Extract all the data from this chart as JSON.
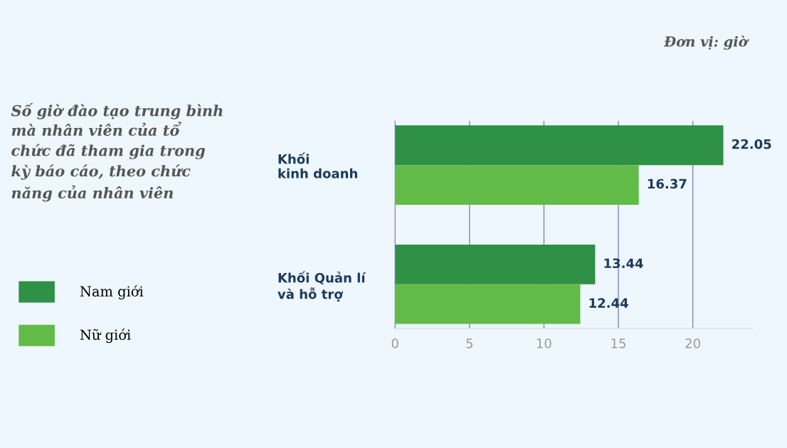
{
  "chart_data": {
    "type": "bar",
    "orientation": "horizontal",
    "title": "Số giờ đào tạo trung bình\nmà nhân viên của tổ\nchức đã tham gia trong\nkỳ báo cáo, theo chức\nnăng của nhân viên",
    "annotations": [
      "Đơn vị: giờ"
    ],
    "categories": [
      "Khối\nkinh doanh",
      "Khối Quản lí\nvà hỗ trợ"
    ],
    "series": [
      {
        "name": "Nam giới",
        "color": "#2e9145",
        "values": [
          22.05,
          13.44
        ]
      },
      {
        "name": "Nữ giới",
        "color": "#62bb47",
        "values": [
          16.37,
          12.44
        ]
      }
    ],
    "xlim": [
      0,
      24
    ],
    "xticks": [
      0,
      5,
      10,
      15,
      20
    ],
    "grid": "x",
    "legend": "left",
    "data_labels": true
  }
}
